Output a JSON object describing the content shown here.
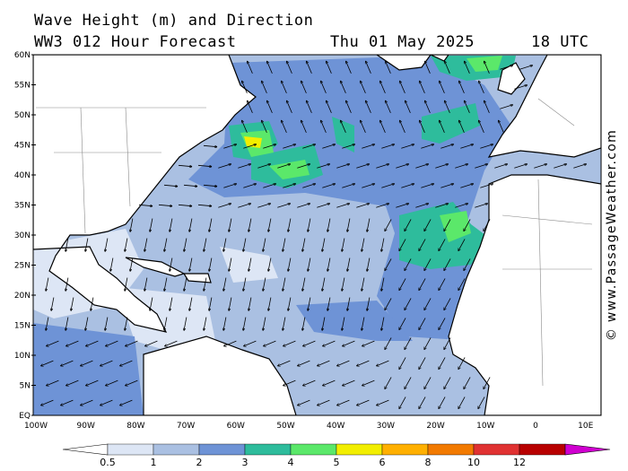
{
  "title_line1": "Wave Height (m) and Direction",
  "title_line2": "WW3 012 Hour Forecast",
  "forecast_date": "Thu 01 May 2025",
  "forecast_time": "18 UTC",
  "credit": "© www.PassageWeather.com",
  "lat_labels": [
    "60N",
    "55N",
    "50N",
    "45N",
    "40N",
    "35N",
    "30N",
    "25N",
    "20N",
    "15N",
    "10N",
    "5N",
    "EQ"
  ],
  "lon_labels": [
    "100W",
    "90W",
    "80W",
    "70W",
    "60W",
    "50W",
    "40W",
    "30W",
    "20W",
    "10W",
    "0",
    "10E"
  ],
  "colorbar": {
    "ticks": [
      "0.5",
      "1",
      "2",
      "3",
      "4",
      "5",
      "6",
      "8",
      "10",
      "12"
    ],
    "colors": [
      "#dde6f5",
      "#aac0e2",
      "#6e93d6",
      "#2ebc9c",
      "#5be86a",
      "#f2ee00",
      "#ffb000",
      "#f27a00",
      "#e03232",
      "#b80000",
      "#d000d0"
    ]
  },
  "wave_classes": {
    "sea_calm": "#dde6f5",
    "one_two": "#aac0e2",
    "two_three": "#6e93d6",
    "three_four": "#2ebc9c",
    "four_five": "#5be86a",
    "five_six": "#f2ee00",
    "land": "#ffffff"
  }
}
